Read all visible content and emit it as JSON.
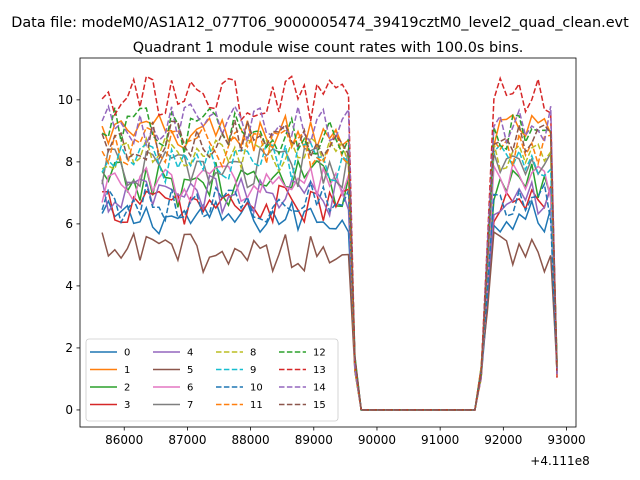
{
  "figure": {
    "suptitle": "Data file: modeM0/AS1A12_077T06_9000005474_39419cztM0_level2_quad_clean.evt"
  },
  "chart_data": {
    "type": "line",
    "title": "Quadrant 1 module wise count rates with 100.0s bins.",
    "xlabel": "",
    "ylabel": "",
    "x_offset_label": "+4.111e8",
    "xlim": [
      85300,
      93150
    ],
    "ylim": [
      -0.55,
      11.35
    ],
    "x_ticks": [
      86000,
      87000,
      88000,
      89000,
      90000,
      91000,
      92000,
      93000
    ],
    "y_ticks": [
      0,
      2,
      4,
      6,
      8,
      10
    ],
    "grid": false,
    "legend_position": "lower-left",
    "legend_ncol": 4,
    "segments": [
      {
        "x_start": 85650,
        "x_end": 89550
      },
      {
        "x_start": 91650,
        "x_end": 92850
      }
    ],
    "gap_x": [
      89650,
      89750,
      89850,
      91550
    ],
    "series": [
      {
        "name": "0",
        "color": "#1f77b4",
        "dash": "solid",
        "base_level": 6.2,
        "noise": 0.25,
        "gap_value": 0.0
      },
      {
        "name": "1",
        "color": "#ff7f0e",
        "dash": "solid",
        "base_level": 8.9,
        "noise": 0.3,
        "gap_value": 0.0
      },
      {
        "name": "2",
        "color": "#2ca02c",
        "dash": "solid",
        "base_level": 7.3,
        "noise": 0.35,
        "gap_value": 0.0
      },
      {
        "name": "3",
        "color": "#d62728",
        "dash": "solid",
        "base_level": 6.6,
        "noise": 0.3,
        "gap_value": 0.0
      },
      {
        "name": "4",
        "color": "#9467bd",
        "dash": "solid",
        "base_level": 6.9,
        "noise": 0.3,
        "gap_value": 0.0
      },
      {
        "name": "5",
        "color": "#8c564b",
        "dash": "solid",
        "base_level": 5.1,
        "noise": 0.3,
        "gap_value": 0.0
      },
      {
        "name": "6",
        "color": "#e377c2",
        "dash": "solid",
        "base_level": 7.3,
        "noise": 0.3,
        "gap_value": 0.0
      },
      {
        "name": "7",
        "color": "#7f7f7f",
        "dash": "solid",
        "base_level": 7.8,
        "noise": 0.3,
        "gap_value": 0.0
      },
      {
        "name": "8",
        "color": "#bcbd22",
        "dash": "dashed",
        "base_level": 8.2,
        "noise": 0.3,
        "gap_value": 0.0
      },
      {
        "name": "9",
        "color": "#17becf",
        "dash": "dashed",
        "base_level": 8.0,
        "noise": 0.3,
        "gap_value": 0.0
      },
      {
        "name": "10",
        "color": "#1f77b4",
        "dash": "dashed",
        "base_level": 6.7,
        "noise": 0.3,
        "gap_value": 0.0
      },
      {
        "name": "11",
        "color": "#ff7f0e",
        "dash": "dashed",
        "base_level": 8.5,
        "noise": 0.3,
        "gap_value": 0.0
      },
      {
        "name": "12",
        "color": "#2ca02c",
        "dash": "dashed",
        "base_level": 9.0,
        "noise": 0.35,
        "gap_value": 0.0
      },
      {
        "name": "13",
        "color": "#d62728",
        "dash": "dashed",
        "base_level": 10.0,
        "noise": 0.35,
        "gap_value": 0.0
      },
      {
        "name": "14",
        "color": "#9467bd",
        "dash": "dashed",
        "base_level": 9.2,
        "noise": 0.3,
        "gap_value": 0.0
      },
      {
        "name": "15",
        "color": "#8c564b",
        "dash": "dashed",
        "base_level": 8.7,
        "noise": 0.3,
        "gap_value": 0.0
      }
    ]
  }
}
